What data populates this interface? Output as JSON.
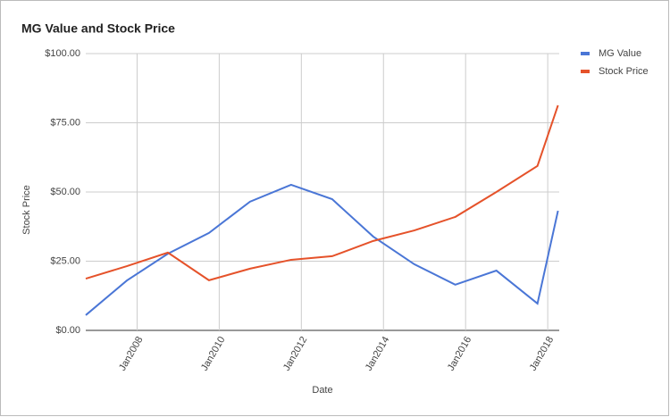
{
  "chart_data": {
    "type": "line",
    "title": "MG Value and Stock Price",
    "x_label": "Date",
    "y_label": "Stock Price",
    "x": [
      2006.75,
      2007.75,
      2008.75,
      2009.75,
      2010.75,
      2011.75,
      2012.75,
      2013.75,
      2014.75,
      2015.75,
      2016.75,
      2017.75,
      2018.25
    ],
    "series": [
      {
        "name": "MG Value",
        "color": "#4a76d6",
        "values": [
          5.5,
          18,
          27.7,
          35.2,
          46.5,
          52.6,
          47.4,
          33.9,
          23.9,
          16.5,
          21.6,
          9.7,
          43.2
        ]
      },
      {
        "name": "Stock Price",
        "color": "#e5522a",
        "values": [
          18.7,
          23.2,
          28.1,
          18.1,
          22.3,
          25.5,
          26.8,
          32.3,
          36.1,
          41,
          50,
          59.4,
          81.3
        ]
      }
    ],
    "xlim": [
      2006.75,
      2018.28
    ],
    "xticks": [
      {
        "value": 2008,
        "label": "Jan2008"
      },
      {
        "value": 2010,
        "label": "Jan2010"
      },
      {
        "value": 2012,
        "label": "Jan2012"
      },
      {
        "value": 2014,
        "label": "Jan2014"
      },
      {
        "value": 2016,
        "label": "Jan2016"
      },
      {
        "value": 2018,
        "label": "Jan2018"
      }
    ],
    "ylim": [
      0,
      100
    ],
    "yticks": [
      {
        "value": 0,
        "label": "$0.00"
      },
      {
        "value": 25,
        "label": "$25.00"
      },
      {
        "value": 50,
        "label": "$50.00"
      },
      {
        "value": 75,
        "label": "$75.00"
      },
      {
        "value": 100,
        "label": "$100.00"
      }
    ],
    "grid": true,
    "legend": "right"
  }
}
